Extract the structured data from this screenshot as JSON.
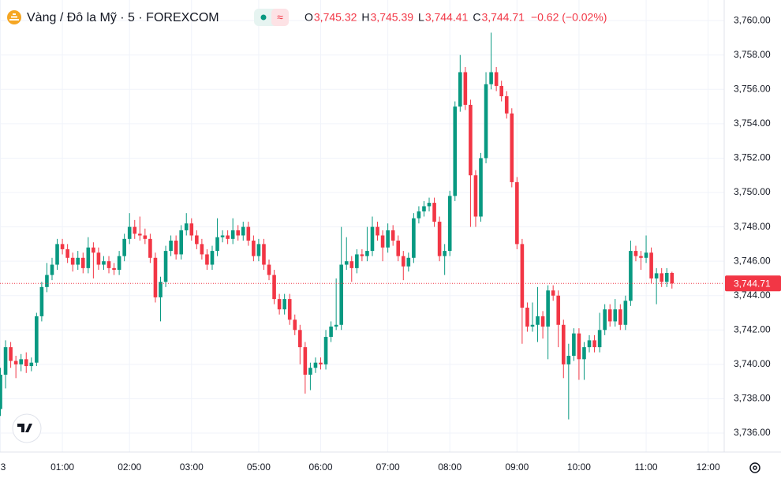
{
  "chart_data": {
    "type": "candlestick",
    "title": "Vàng / Đô la Mỹ · 5 · FOREXCOM",
    "ohlc_letters": [
      "O",
      "H",
      "L",
      "C"
    ],
    "ohlc_values": [
      "3,745.32",
      "3,745.39",
      "3,744.41",
      "3,744.71"
    ],
    "change": "−0.62 (−0.02%)",
    "up_color": "#089981",
    "down_color": "#f23645",
    "open": [
      3737.4,
      3739.4,
      3741.0,
      3740.2,
      3740.0,
      3740.3,
      3739.9,
      3740.1,
      3742.8,
      3744.5,
      3745.2,
      3745.8,
      3747.0,
      3746.7,
      3746.2,
      3745.8,
      3746.2,
      3745.6,
      3746.8,
      3746.5,
      3745.8,
      3746.0,
      3745.6,
      3745.5,
      3746.3,
      3747.3,
      3748.0,
      3747.6,
      3747.5,
      3747.3,
      3746.2,
      3743.9,
      3744.8,
      3746.6,
      3747.2,
      3746.4,
      3747.8,
      3748.2,
      3747.5,
      3747.0,
      3746.4,
      3745.8,
      3746.6,
      3747.4,
      3747.5,
      3747.3,
      3747.8,
      3747.5,
      3748.0,
      3747.2,
      3746.3,
      3747.0,
      3745.8,
      3745.2,
      3743.8,
      3743.2,
      3743.8,
      3742.6,
      3742.0,
      3741.0,
      3739.4,
      3739.8,
      3740.1,
      3740.0,
      3741.6,
      3742.2,
      3742.3,
      3745.8,
      3746.0,
      3745.6,
      3746.4,
      3746.3,
      3746.6,
      3748.0,
      3747.5,
      3746.8,
      3747.8,
      3747.2,
      3746.3,
      3745.7,
      3746.2,
      3748.5,
      3748.9,
      3749.2,
      3749.4,
      3748.3,
      3746.3,
      3746.6,
      3749.8,
      3755.0,
      3757.0,
      3755.1,
      3751.0,
      3748.6,
      3752.0,
      3756.3,
      3757.0,
      3756.2,
      3755.6,
      3754.6,
      3750.6,
      3747.0,
      3743.3,
      3742.2,
      3742.3,
      3742.8,
      3742.2,
      3744.3,
      3744.0,
      3742.3,
      3740.0,
      3740.5,
      3741.8,
      3740.3,
      3741.0,
      3741.4,
      3741.0,
      3742.0,
      3743.2,
      3742.5,
      3743.2,
      3742.3,
      3743.7,
      3746.6,
      3746.3,
      3746.2,
      3746.5,
      3745.0,
      3745.3,
      3744.8,
      3745.32
    ],
    "high": [
      3739.8,
      3741.4,
      3741.3,
      3740.5,
      3740.6,
      3740.7,
      3740.4,
      3743.0,
      3744.8,
      3745.9,
      3746.2,
      3747.3,
      3747.3,
      3747.0,
      3746.5,
      3746.6,
      3746.5,
      3747.4,
      3747.1,
      3746.8,
      3746.3,
      3746.3,
      3745.9,
      3746.6,
      3747.6,
      3748.8,
      3748.4,
      3748.6,
      3747.9,
      3747.6,
      3746.5,
      3745.1,
      3746.9,
      3747.5,
      3747.5,
      3748.1,
      3748.8,
      3748.5,
      3747.8,
      3747.3,
      3746.7,
      3746.9,
      3748.5,
      3747.8,
      3747.8,
      3748.5,
      3748.1,
      3748.3,
      3748.3,
      3747.5,
      3747.3,
      3747.3,
      3746.1,
      3745.5,
      3744.1,
      3744.1,
      3744.1,
      3742.9,
      3742.3,
      3741.3,
      3740.1,
      3740.4,
      3740.4,
      3742.0,
      3742.5,
      3745.0,
      3748.0,
      3747.4,
      3746.3,
      3746.7,
      3746.7,
      3748.0,
      3748.6,
      3748.3,
      3747.8,
      3748.2,
      3748.1,
      3747.5,
      3746.6,
      3746.5,
      3748.8,
      3749.2,
      3749.5,
      3749.7,
      3749.7,
      3748.6,
      3747.0,
      3750.1,
      3755.3,
      3758.0,
      3757.3,
      3755.4,
      3751.3,
      3752.3,
      3757.0,
      3759.3,
      3757.3,
      3756.5,
      3755.9,
      3754.9,
      3750.9,
      3747.3,
      3743.6,
      3743.6,
      3744.5,
      3743.1,
      3744.6,
      3744.6,
      3744.3,
      3742.6,
      3741.2,
      3742.1,
      3742.1,
      3741.3,
      3741.7,
      3741.7,
      3743.0,
      3743.5,
      3743.5,
      3743.8,
      3743.5,
      3744.0,
      3747.2,
      3746.9,
      3746.6,
      3747.5,
      3746.8,
      3745.6,
      3745.6,
      3745.6,
      3745.39
    ],
    "low": [
      3737.0,
      3738.6,
      3739.8,
      3739.2,
      3739.6,
      3739.5,
      3739.6,
      3739.9,
      3742.5,
      3744.2,
      3744.9,
      3745.5,
      3746.4,
      3745.9,
      3745.4,
      3745.5,
      3745.3,
      3745.3,
      3745.0,
      3745.5,
      3745.5,
      3745.3,
      3745.2,
      3745.2,
      3746.0,
      3747.0,
      3747.3,
      3747.2,
      3747.0,
      3745.9,
      3743.6,
      3742.5,
      3744.5,
      3746.3,
      3746.1,
      3746.1,
      3747.5,
      3747.2,
      3746.7,
      3746.1,
      3745.5,
      3745.5,
      3746.3,
      3747.1,
      3747.0,
      3747.0,
      3747.2,
      3747.2,
      3746.9,
      3746.0,
      3746.0,
      3745.5,
      3744.9,
      3743.5,
      3742.9,
      3742.9,
      3742.3,
      3741.7,
      3740.0,
      3738.3,
      3738.5,
      3739.5,
      3739.7,
      3739.7,
      3741.3,
      3742.0,
      3742.0,
      3745.5,
      3744.8,
      3745.3,
      3746.0,
      3746.0,
      3746.3,
      3747.2,
      3746.0,
      3746.5,
      3746.9,
      3746.0,
      3744.9,
      3745.4,
      3745.9,
      3748.2,
      3748.6,
      3748.9,
      3748.0,
      3746.0,
      3745.2,
      3746.3,
      3749.5,
      3754.7,
      3754.8,
      3748.0,
      3748.0,
      3748.3,
      3751.7,
      3756.0,
      3755.9,
      3755.3,
      3754.3,
      3750.3,
      3746.7,
      3741.2,
      3741.9,
      3741.9,
      3741.3,
      3741.5,
      3740.3,
      3743.7,
      3741.0,
      3739.2,
      3736.8,
      3740.2,
      3739.1,
      3739.1,
      3740.7,
      3740.7,
      3740.7,
      3741.7,
      3742.2,
      3742.2,
      3742.0,
      3742.0,
      3743.4,
      3746.0,
      3745.5,
      3745.9,
      3744.7,
      3743.5,
      3744.5,
      3744.5,
      3744.41
    ],
    "close": [
      3739.4,
      3741.0,
      3740.2,
      3740.0,
      3740.3,
      3739.9,
      3740.1,
      3742.8,
      3744.5,
      3745.2,
      3745.8,
      3747.0,
      3746.7,
      3746.2,
      3745.8,
      3746.2,
      3745.6,
      3746.8,
      3746.5,
      3745.8,
      3746.0,
      3745.6,
      3745.5,
      3746.3,
      3747.3,
      3748.0,
      3747.6,
      3747.5,
      3747.3,
      3746.2,
      3743.9,
      3744.8,
      3746.6,
      3747.2,
      3746.4,
      3747.8,
      3748.2,
      3747.5,
      3747.0,
      3746.4,
      3745.8,
      3746.6,
      3747.4,
      3747.5,
      3747.3,
      3747.8,
      3747.5,
      3748.0,
      3747.2,
      3746.3,
      3747.0,
      3745.8,
      3745.2,
      3743.8,
      3743.2,
      3743.8,
      3742.6,
      3742.0,
      3741.0,
      3739.4,
      3739.8,
      3740.1,
      3740.0,
      3741.6,
      3742.2,
      3742.3,
      3745.8,
      3746.0,
      3745.6,
      3746.4,
      3746.3,
      3746.6,
      3748.0,
      3747.5,
      3746.8,
      3747.8,
      3747.2,
      3746.3,
      3745.7,
      3746.2,
      3748.5,
      3748.9,
      3749.2,
      3749.4,
      3748.3,
      3746.3,
      3746.6,
      3749.8,
      3755.0,
      3757.0,
      3755.1,
      3751.0,
      3748.6,
      3752.0,
      3756.3,
      3757.0,
      3756.2,
      3755.6,
      3754.6,
      3750.6,
      3747.0,
      3743.3,
      3742.2,
      3742.3,
      3742.8,
      3742.2,
      3744.3,
      3744.0,
      3742.3,
      3740.0,
      3740.5,
      3741.8,
      3740.3,
      3741.0,
      3741.4,
      3741.0,
      3742.0,
      3743.2,
      3742.5,
      3743.2,
      3742.3,
      3743.7,
      3746.6,
      3746.3,
      3746.2,
      3746.5,
      3745.0,
      3745.3,
      3744.8,
      3745.32,
      3744.71
    ],
    "last_price": {
      "value": 3744.71,
      "label": "3,744.71"
    },
    "xlim": [
      0,
      139.5
    ],
    "xticks": [
      {
        "value": 0,
        "label": "3"
      },
      {
        "value": 12,
        "label": "01:00"
      },
      {
        "value": 25,
        "label": "02:00"
      },
      {
        "value": 37,
        "label": "03:00"
      },
      {
        "value": 50,
        "label": "05:00"
      },
      {
        "value": 62,
        "label": "06:00"
      },
      {
        "value": 75,
        "label": "07:00"
      },
      {
        "value": 87,
        "label": "08:00"
      },
      {
        "value": 100,
        "label": "09:00"
      },
      {
        "value": 112,
        "label": "10:00"
      },
      {
        "value": 125,
        "label": "11:00"
      },
      {
        "value": 137,
        "label": "12:00"
      }
    ],
    "ylim": [
      3734.9,
      3761.2
    ],
    "yticks": [
      {
        "value": 3736,
        "label": "3,736.00"
      },
      {
        "value": 3738,
        "label": "3,738.00"
      },
      {
        "value": 3740,
        "label": "3,740.00"
      },
      {
        "value": 3742,
        "label": "3,742.00"
      },
      {
        "value": 3744,
        "label": "3,744.00"
      },
      {
        "value": 3746,
        "label": "3,746.00"
      },
      {
        "value": 3748,
        "label": "3,748.00"
      },
      {
        "value": 3750,
        "label": "3,750.00"
      },
      {
        "value": 3752,
        "label": "3,752.00"
      },
      {
        "value": 3754,
        "label": "3,754.00"
      },
      {
        "value": 3756,
        "label": "3,756.00"
      },
      {
        "value": 3758,
        "label": "3,758.00"
      },
      {
        "value": 3760,
        "label": "3,760.00"
      }
    ],
    "grid": true
  }
}
